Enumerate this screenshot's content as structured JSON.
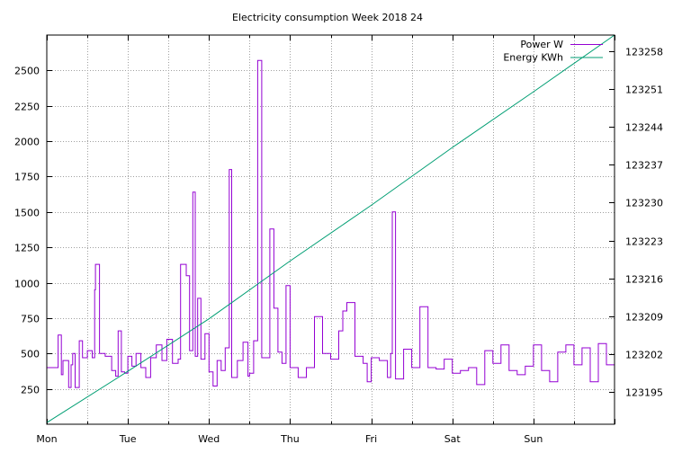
{
  "chart_data": {
    "type": "line",
    "title": "Electricity consumption Week 2018 24",
    "x_tick_labels": [
      "Mon",
      "Tue",
      "Wed",
      "Thu",
      "Fri",
      "Sat",
      "Sun"
    ],
    "x_range_days": [
      0,
      7
    ],
    "y_left": {
      "ticks": [
        250,
        500,
        750,
        1000,
        1250,
        1500,
        1750,
        2000,
        2250,
        2500
      ],
      "range": [
        0,
        2750
      ]
    },
    "y_right": {
      "ticks": [
        123195,
        123202,
        123209,
        123216,
        123223,
        123230,
        123237,
        123244,
        123251,
        123258
      ],
      "range": [
        123189,
        123261
      ]
    },
    "grid": true,
    "legend_position": "top-right",
    "series": [
      {
        "name": "Power W",
        "axis": "left",
        "color": "#9400d3",
        "x": [
          0.0,
          0.13,
          0.14,
          0.18,
          0.2,
          0.27,
          0.3,
          0.32,
          0.35,
          0.4,
          0.44,
          0.5,
          0.56,
          0.59,
          0.6,
          0.65,
          0.72,
          0.8,
          0.85,
          0.88,
          0.92,
          0.96,
          1.0,
          1.05,
          1.1,
          1.16,
          1.22,
          1.28,
          1.35,
          1.42,
          1.48,
          1.55,
          1.62,
          1.65,
          1.72,
          1.76,
          1.8,
          1.83,
          1.86,
          1.9,
          1.95,
          2.0,
          2.05,
          2.1,
          2.15,
          2.2,
          2.25,
          2.28,
          2.35,
          2.42,
          2.48,
          2.5,
          2.55,
          2.6,
          2.65,
          2.7,
          2.75,
          2.8,
          2.85,
          2.9,
          2.95,
          3.0,
          3.1,
          3.2,
          3.3,
          3.4,
          3.5,
          3.6,
          3.65,
          3.7,
          3.8,
          3.9,
          3.95,
          4.0,
          4.1,
          4.2,
          4.24,
          4.26,
          4.3,
          4.4,
          4.5,
          4.6,
          4.7,
          4.8,
          4.9,
          5.0,
          5.1,
          5.2,
          5.3,
          5.4,
          5.5,
          5.6,
          5.7,
          5.8,
          5.9,
          6.0,
          6.1,
          6.2,
          6.3,
          6.4,
          6.5,
          6.6,
          6.7,
          6.8,
          6.9,
          7.0
        ],
        "y": [
          400,
          400,
          630,
          350,
          450,
          260,
          420,
          500,
          260,
          590,
          470,
          520,
          470,
          950,
          1130,
          500,
          480,
          380,
          340,
          660,
          370,
          360,
          480,
          410,
          500,
          400,
          330,
          470,
          560,
          450,
          600,
          430,
          460,
          1130,
          1050,
          520,
          1640,
          480,
          890,
          460,
          640,
          370,
          270,
          450,
          380,
          540,
          1800,
          330,
          450,
          580,
          340,
          360,
          590,
          2570,
          470,
          470,
          1380,
          820,
          510,
          430,
          980,
          400,
          330,
          400,
          760,
          500,
          460,
          660,
          800,
          860,
          480,
          430,
          300,
          470,
          450,
          330,
          500,
          1500,
          320,
          530,
          400,
          830,
          400,
          390,
          460,
          360,
          380,
          400,
          280,
          520,
          430,
          560,
          380,
          350,
          410,
          560,
          380,
          300,
          510,
          560,
          420,
          540,
          300,
          570,
          420,
          530
        ]
      },
      {
        "name": "Energy KWh",
        "axis": "right",
        "color": "#009e73",
        "x": [
          0,
          1,
          2,
          3,
          4,
          5,
          6,
          7
        ],
        "y": [
          123189.3,
          123198.8,
          123208.5,
          123219.2,
          123229.5,
          123240.2,
          123250.5,
          123261.0
        ]
      }
    ]
  }
}
